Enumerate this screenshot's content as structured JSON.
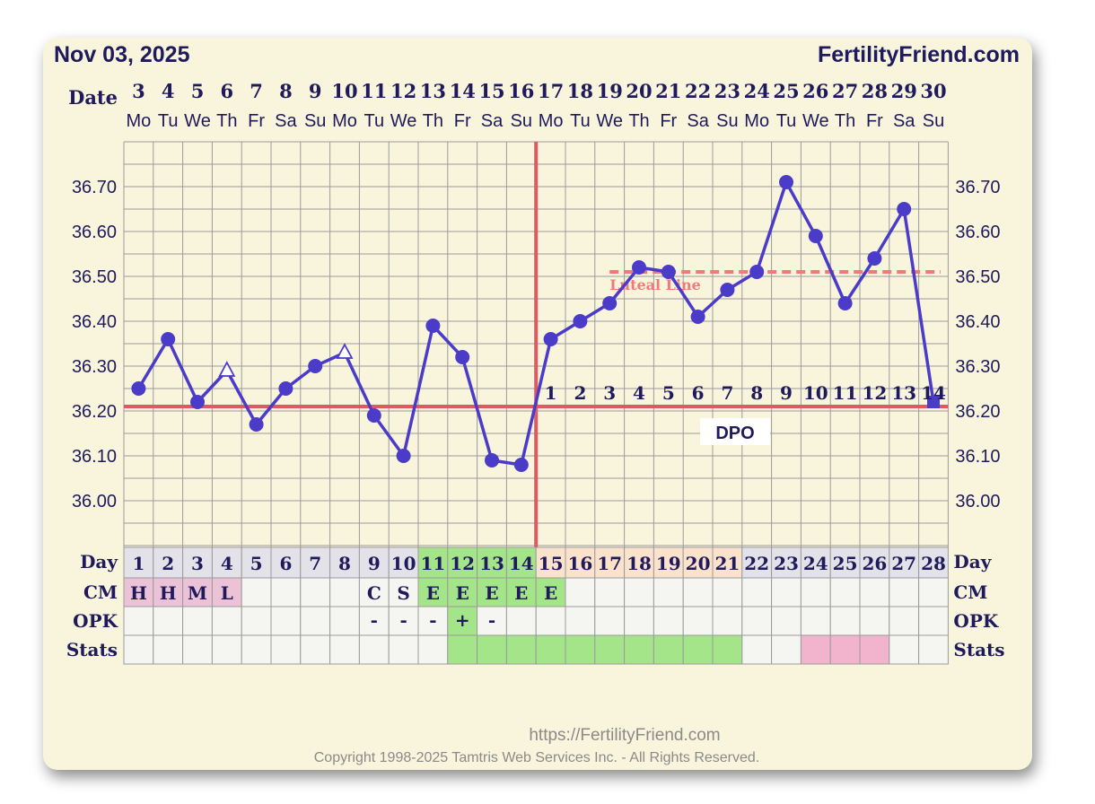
{
  "header": {
    "date": "Nov 03, 2025",
    "brand": "FertilityFriend.com"
  },
  "labels": {
    "date": "Date",
    "day": "Day",
    "cm": "CM",
    "opk": "OPK",
    "stats": "Stats",
    "luteal": "Luteal Line",
    "dpo": "DPO"
  },
  "footer": {
    "url": "https://FertilityFriend.com",
    "copyright": "Copyright 1998-2025 Tamtris Web Services Inc. - All Rights Reserved."
  },
  "chart_data": {
    "type": "line",
    "dates": [
      "3",
      "4",
      "5",
      "6",
      "7",
      "8",
      "9",
      "10",
      "11",
      "12",
      "13",
      "14",
      "15",
      "16",
      "17",
      "18",
      "19",
      "20",
      "21",
      "22",
      "23",
      "24",
      "25",
      "26",
      "27",
      "28",
      "29",
      "30"
    ],
    "weekdays": [
      "Mo",
      "Tu",
      "We",
      "Th",
      "Fr",
      "Sa",
      "Su",
      "Mo",
      "Tu",
      "We",
      "Th",
      "Fr",
      "Sa",
      "Su",
      "Mo",
      "Tu",
      "We",
      "Th",
      "Fr",
      "Sa",
      "Su",
      "Mo",
      "Tu",
      "We",
      "Th",
      "Fr",
      "Sa",
      "Su"
    ],
    "cycle_days": [
      "1",
      "2",
      "3",
      "4",
      "5",
      "6",
      "7",
      "8",
      "9",
      "10",
      "11",
      "12",
      "13",
      "14",
      "15",
      "16",
      "17",
      "18",
      "19",
      "20",
      "21",
      "22",
      "23",
      "24",
      "25",
      "26",
      "27",
      "28"
    ],
    "temps": [
      36.25,
      36.36,
      36.22,
      36.29,
      36.17,
      36.25,
      36.3,
      36.33,
      36.19,
      36.1,
      36.39,
      36.32,
      36.09,
      36.08,
      36.36,
      36.4,
      36.44,
      36.52,
      36.51,
      36.41,
      36.47,
      36.51,
      36.71,
      36.59,
      36.44,
      36.54,
      36.65,
      36.22
    ],
    "marker_shapes": [
      "dot",
      "dot",
      "dot",
      "triangle",
      "dot",
      "dot",
      "dot",
      "triangle",
      "dot",
      "dot",
      "dot",
      "dot",
      "dot",
      "dot",
      "dot",
      "dot",
      "dot",
      "dot",
      "dot",
      "dot",
      "dot",
      "dot",
      "dot",
      "dot",
      "dot",
      "dot",
      "dot",
      "square"
    ],
    "y_ticks": [
      "36.70",
      "36.60",
      "36.50",
      "36.40",
      "36.30",
      "36.20",
      "36.10",
      "36.00"
    ],
    "ylim": [
      35.9,
      36.8
    ],
    "coverline": 36.21,
    "luteal_line": {
      "value": 36.51,
      "from_day": 17,
      "to_day": 28
    },
    "ovulation_day": 14,
    "dpo_labels": [
      "1",
      "2",
      "3",
      "4",
      "5",
      "6",
      "7",
      "8",
      "9",
      "10",
      "11",
      "12",
      "13",
      "14"
    ],
    "cm": [
      "H",
      "H",
      "M",
      "L",
      "",
      "",
      "",
      "",
      "C",
      "S",
      "E",
      "E",
      "E",
      "E",
      "E",
      "",
      "",
      "",
      "",
      "",
      "",
      "",
      "",
      "",
      "",
      "",
      "",
      ""
    ],
    "opk": [
      "",
      "",
      "",
      "",
      "",
      "",
      "",
      "",
      "-",
      "-",
      "-",
      "+",
      "-",
      "",
      "",
      "",
      "",
      "",
      "",
      "",
      "",
      "",
      "",
      "",
      "",
      "",
      "",
      ""
    ],
    "stats": [
      "",
      "",
      "",
      "",
      "",
      "",
      "",
      "",
      "",
      "",
      "",
      "g",
      "g",
      "g",
      "g",
      "g",
      "g",
      "g",
      "g",
      "g",
      "g",
      "",
      "",
      "p",
      "p",
      "p",
      "",
      ""
    ],
    "colors": {
      "line": "#4b3bc9",
      "coverline": "#de5a60",
      "luteal": "#f07a7a",
      "grid": "#9b9b9b",
      "cell_bg": "#f5f5f2",
      "period_row": "#ecc3d6",
      "cycle_gray": "#e2e2e8",
      "fertile_green": "#a4e58a",
      "luteal_peach": "#fbe3cb",
      "stats_pink": "#f2b4cd"
    }
  }
}
